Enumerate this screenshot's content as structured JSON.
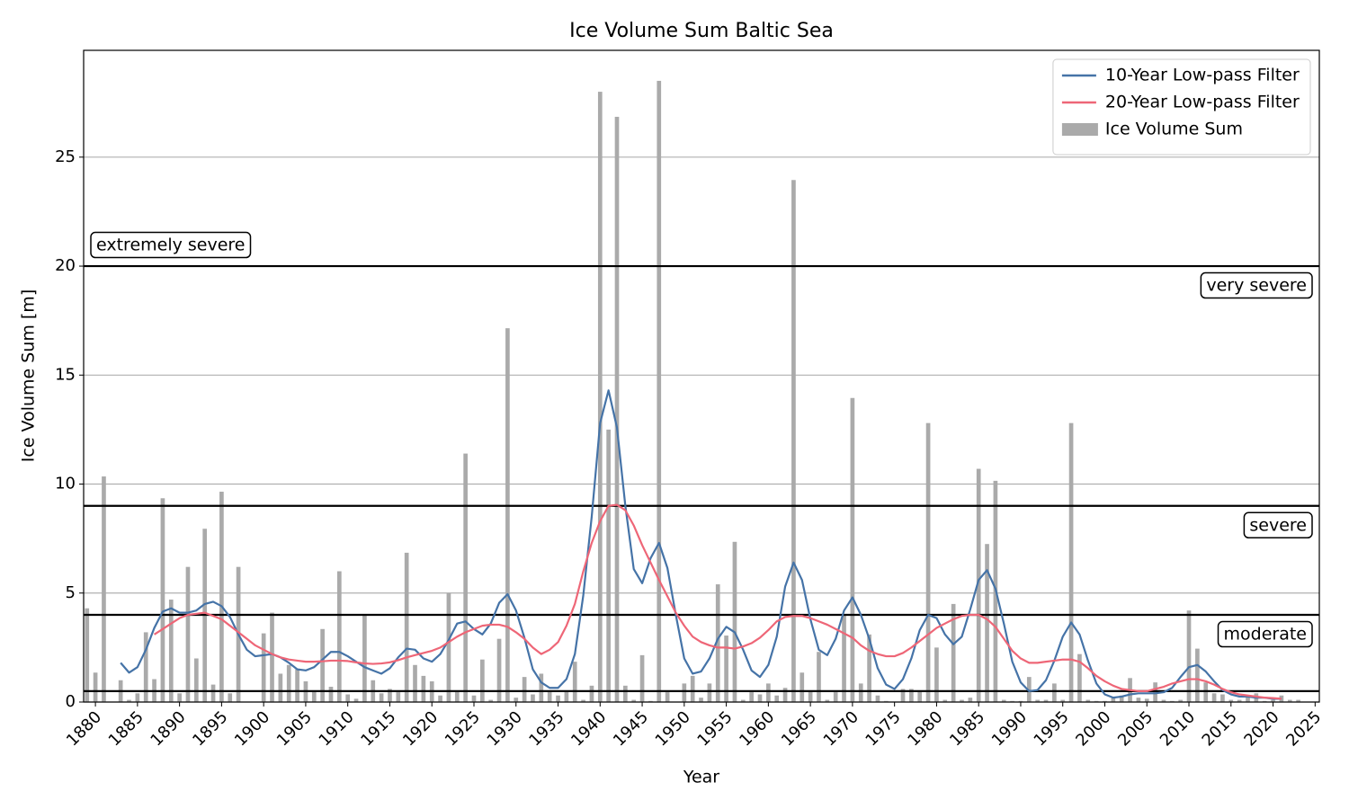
{
  "chart_data": {
    "type": "bar",
    "title": "Ice Volume Sum Baltic Sea",
    "x_label": "Year",
    "y_label": "Ice Volume Sum [m]",
    "x": [
      1879,
      1880,
      1881,
      1882,
      1883,
      1884,
      1885,
      1886,
      1887,
      1888,
      1889,
      1890,
      1891,
      1892,
      1893,
      1894,
      1895,
      1896,
      1897,
      1898,
      1899,
      1900,
      1901,
      1902,
      1903,
      1904,
      1905,
      1906,
      1907,
      1908,
      1909,
      1910,
      1911,
      1912,
      1913,
      1914,
      1915,
      1916,
      1917,
      1918,
      1919,
      1920,
      1921,
      1922,
      1923,
      1924,
      1925,
      1926,
      1927,
      1928,
      1929,
      1930,
      1931,
      1932,
      1933,
      1934,
      1935,
      1936,
      1937,
      1938,
      1939,
      1940,
      1941,
      1942,
      1943,
      1944,
      1945,
      1946,
      1947,
      1948,
      1949,
      1950,
      1951,
      1952,
      1953,
      1954,
      1955,
      1956,
      1957,
      1958,
      1959,
      1960,
      1961,
      1962,
      1963,
      1964,
      1965,
      1966,
      1967,
      1968,
      1969,
      1970,
      1971,
      1972,
      1973,
      1974,
      1975,
      1976,
      1977,
      1978,
      1979,
      1980,
      1981,
      1982,
      1983,
      1984,
      1985,
      1986,
      1987,
      1988,
      1989,
      1990,
      1991,
      1992,
      1993,
      1994,
      1995,
      1996,
      1997,
      1998,
      1999,
      2000,
      2001,
      2002,
      2003,
      2004,
      2005,
      2006,
      2007,
      2008,
      2009,
      2010,
      2011,
      2012,
      2013,
      2014,
      2015,
      2016,
      2017,
      2018,
      2019,
      2020,
      2021,
      2022,
      2023
    ],
    "series": [
      {
        "name": "10-Year Low-pass Filter",
        "type": "line",
        "color": "#4573a7",
        "values": [
          null,
          null,
          null,
          null,
          1.8,
          1.35,
          1.6,
          2.4,
          3.4,
          4.15,
          4.3,
          4.1,
          4.1,
          4.2,
          4.5,
          4.6,
          4.4,
          3.9,
          3.1,
          2.4,
          2.1,
          2.15,
          2.2,
          2.05,
          1.8,
          1.5,
          1.45,
          1.6,
          1.95,
          2.3,
          2.3,
          2.1,
          1.85,
          1.6,
          1.45,
          1.3,
          1.55,
          2.05,
          2.45,
          2.4,
          2.0,
          1.85,
          2.2,
          2.85,
          3.6,
          3.7,
          3.35,
          3.1,
          3.6,
          4.55,
          4.95,
          4.2,
          2.95,
          1.5,
          0.9,
          0.65,
          0.65,
          1.05,
          2.2,
          4.9,
          8.5,
          12.8,
          14.3,
          12.6,
          9.0,
          6.1,
          5.45,
          6.6,
          7.3,
          6.15,
          4.0,
          2.0,
          1.3,
          1.4,
          2.0,
          2.9,
          3.45,
          3.2,
          2.4,
          1.45,
          1.15,
          1.7,
          3.0,
          5.3,
          6.4,
          5.6,
          3.8,
          2.4,
          2.15,
          2.9,
          4.2,
          4.8,
          4.0,
          2.9,
          1.55,
          0.8,
          0.6,
          1.05,
          2.0,
          3.3,
          4.0,
          3.85,
          3.1,
          2.65,
          3.0,
          4.25,
          5.6,
          6.05,
          5.2,
          3.6,
          1.85,
          0.9,
          0.5,
          0.55,
          1.0,
          1.9,
          3.0,
          3.65,
          3.1,
          1.9,
          0.85,
          0.35,
          0.2,
          0.25,
          0.35,
          0.4,
          0.4,
          0.4,
          0.45,
          0.65,
          1.15,
          1.6,
          1.7,
          1.4,
          0.95,
          0.55,
          0.35,
          0.25,
          0.25,
          0.2,
          0.2,
          0.15,
          0.15,
          null,
          null
        ]
      },
      {
        "name": "20-Year Low-pass Filter",
        "type": "line",
        "color": "#ee6677",
        "values": [
          null,
          null,
          null,
          null,
          null,
          null,
          null,
          null,
          3.1,
          3.35,
          3.6,
          3.85,
          4.0,
          4.05,
          4.1,
          3.95,
          3.8,
          3.5,
          3.2,
          2.9,
          2.6,
          2.4,
          2.2,
          2.05,
          1.95,
          1.9,
          1.85,
          1.85,
          1.87,
          1.9,
          1.9,
          1.88,
          1.82,
          1.77,
          1.75,
          1.77,
          1.82,
          1.92,
          2.05,
          2.15,
          2.25,
          2.35,
          2.5,
          2.75,
          3.0,
          3.2,
          3.35,
          3.5,
          3.55,
          3.55,
          3.45,
          3.2,
          2.9,
          2.5,
          2.2,
          2.4,
          2.75,
          3.5,
          4.5,
          6.0,
          7.3,
          8.3,
          9.0,
          9.05,
          8.8,
          8.1,
          7.2,
          6.4,
          5.6,
          4.85,
          4.1,
          3.5,
          3.0,
          2.75,
          2.6,
          2.5,
          2.5,
          2.45,
          2.55,
          2.7,
          2.95,
          3.3,
          3.7,
          3.9,
          3.95,
          3.95,
          3.85,
          3.7,
          3.55,
          3.35,
          3.15,
          2.95,
          2.6,
          2.35,
          2.2,
          2.1,
          2.1,
          2.25,
          2.5,
          2.8,
          3.1,
          3.4,
          3.6,
          3.8,
          3.95,
          4.0,
          4.0,
          3.8,
          3.45,
          2.9,
          2.35,
          2.0,
          1.8,
          1.8,
          1.85,
          1.9,
          1.95,
          1.95,
          1.85,
          1.55,
          1.2,
          0.95,
          0.75,
          0.6,
          0.55,
          0.5,
          0.5,
          0.6,
          0.7,
          0.85,
          0.95,
          1.05,
          1.05,
          0.95,
          0.8,
          0.6,
          0.45,
          0.35,
          0.3,
          0.25,
          0.2,
          0.18,
          0.15,
          null,
          null
        ]
      },
      {
        "name": "Ice Volume Sum",
        "type": "bar",
        "color": "#aaaaaa",
        "values": [
          4.3,
          1.35,
          10.35,
          0,
          1.0,
          0.1,
          0.4,
          3.2,
          1.05,
          9.35,
          4.7,
          0.4,
          6.2,
          2.0,
          7.95,
          0.8,
          9.65,
          0.4,
          6.2,
          0,
          0,
          3.15,
          4.1,
          1.3,
          1.7,
          1.5,
          0.95,
          0.5,
          3.35,
          0.7,
          6.0,
          0.35,
          0.15,
          4.0,
          1.0,
          0.4,
          0.6,
          0.45,
          6.85,
          1.7,
          1.2,
          0.95,
          0.3,
          5.0,
          0.5,
          11.4,
          0.3,
          1.95,
          0.1,
          2.9,
          17.15,
          0.2,
          1.15,
          0.35,
          1.3,
          0.5,
          0.3,
          0.5,
          1.85,
          0.1,
          0.75,
          28.0,
          12.5,
          26.85,
          0.75,
          0.1,
          2.15,
          0.05,
          28.5,
          0.45,
          0,
          0.85,
          1.2,
          0.2,
          0.85,
          5.4,
          3.05,
          7.35,
          0.1,
          0.45,
          0.35,
          0.85,
          0.3,
          0.65,
          23.95,
          1.35,
          0.5,
          2.3,
          0.1,
          0.45,
          4.0,
          13.95,
          0.85,
          3.1,
          0.3,
          0.05,
          0,
          0.6,
          0.6,
          0.5,
          12.8,
          2.5,
          0.1,
          4.5,
          0.1,
          0.2,
          10.7,
          7.25,
          10.15,
          0.1,
          0.05,
          0.05,
          1.15,
          0.1,
          0.1,
          0.85,
          0.1,
          12.8,
          2.2,
          0.1,
          0.05,
          0.05,
          0.2,
          0.3,
          1.1,
          0.2,
          0.15,
          0.9,
          0.1,
          0.05,
          0.1,
          4.2,
          2.45,
          0.9,
          0.4,
          0.35,
          0.1,
          0.1,
          0.3,
          0.4,
          0.05,
          0.1,
          0.3,
          0.1,
          0.1
        ]
      }
    ],
    "thresholds": [
      {
        "value": 0.5
      },
      {
        "value": 4,
        "label": "moderate"
      },
      {
        "value": 9,
        "label": "severe"
      },
      {
        "value": 20,
        "label": "very severe"
      },
      {
        "value": 20,
        "label": "extremely severe"
      }
    ],
    "xlim": [
      1878.6,
      2025.5
    ],
    "ylim": [
      0,
      29.9
    ],
    "xticks": [
      1880,
      1885,
      1890,
      1895,
      1900,
      1905,
      1910,
      1915,
      1920,
      1925,
      1930,
      1935,
      1940,
      1945,
      1950,
      1955,
      1960,
      1965,
      1970,
      1975,
      1980,
      1985,
      1990,
      1995,
      2000,
      2005,
      2010,
      2015,
      2020,
      2025
    ],
    "yticks": [
      0,
      5,
      10,
      15,
      20,
      25
    ],
    "grid": "y",
    "legend": "upper right"
  }
}
